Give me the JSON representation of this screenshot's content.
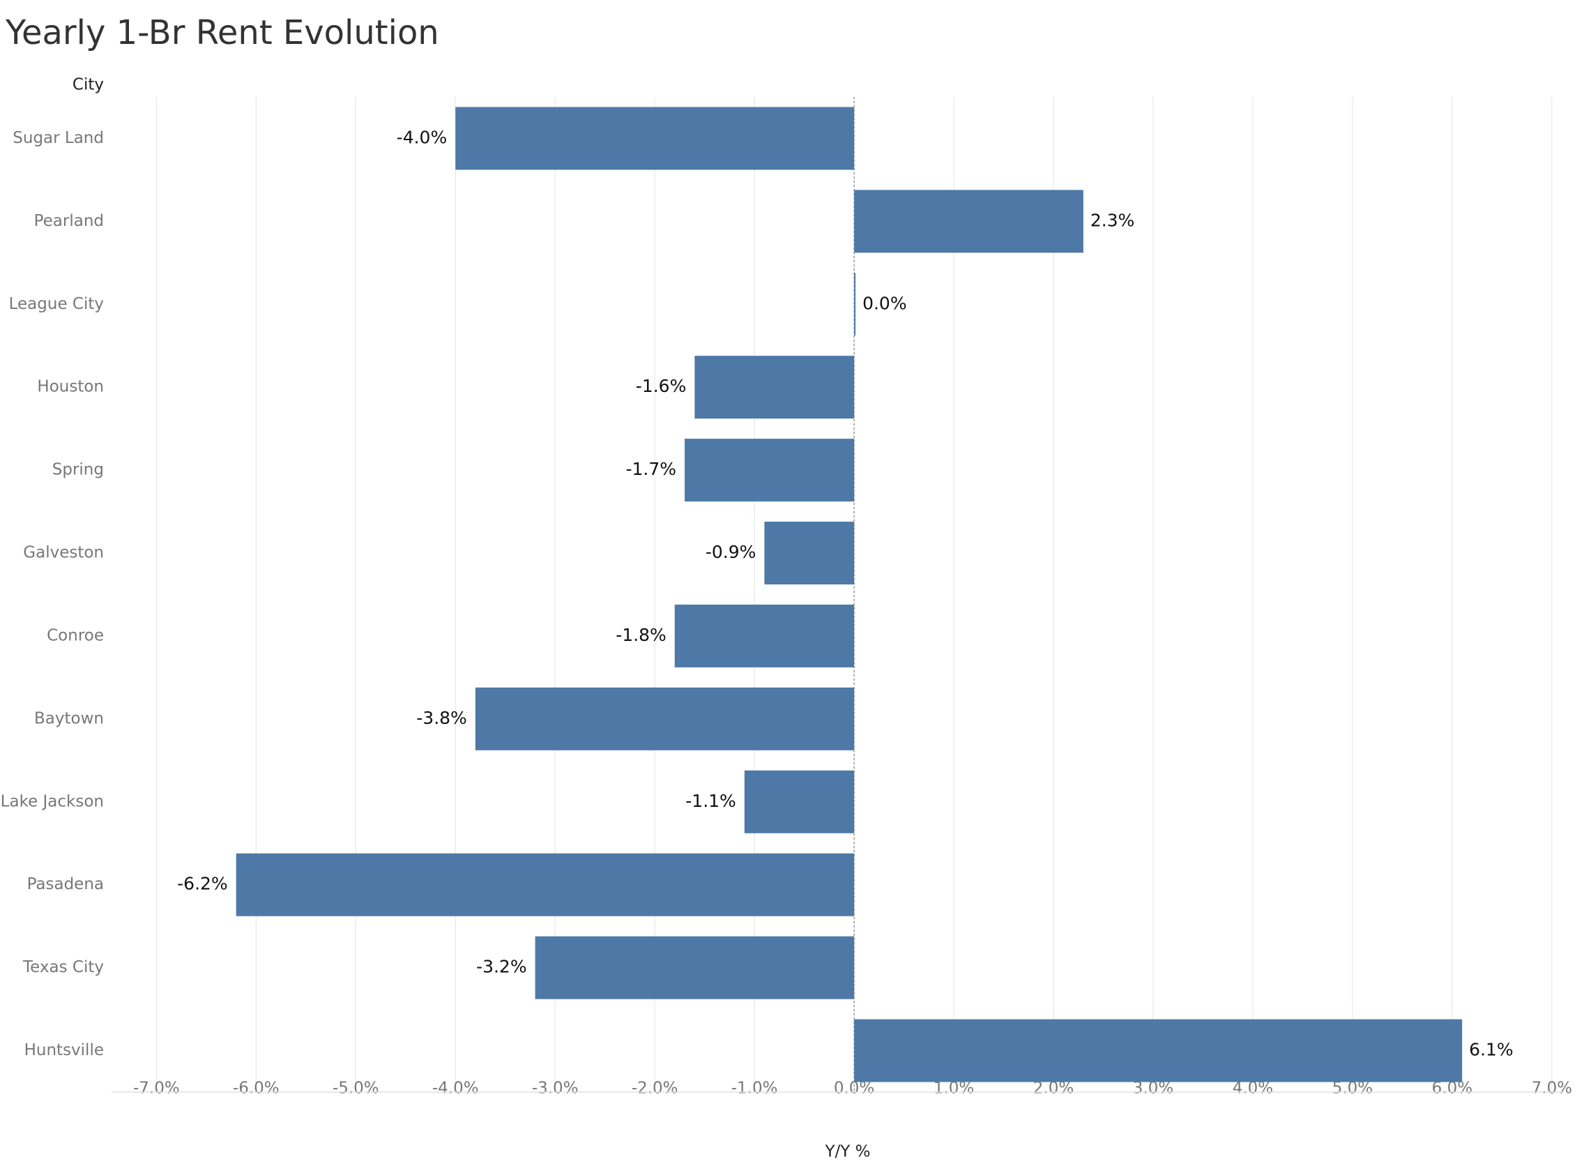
{
  "chart_data": {
    "type": "bar",
    "orientation": "horizontal",
    "title": "Yearly 1-Br Rent Evolution",
    "category_axis_label": "City",
    "x_axis_label": "Y/Y %",
    "categories": [
      "Sugar Land",
      "Pearland",
      "League City",
      "Houston",
      "Spring",
      "Galveston",
      "Conroe",
      "Baytown",
      "Lake Jackson",
      "Pasadena",
      "Texas City",
      "Huntsville"
    ],
    "values": [
      -4.0,
      2.3,
      0.0,
      -1.6,
      -1.7,
      -0.9,
      -1.8,
      -3.8,
      -1.1,
      -6.2,
      -3.2,
      6.1
    ],
    "value_labels": [
      "-4.0%",
      "2.3%",
      "0.0%",
      "-1.6%",
      "-1.7%",
      "-0.9%",
      "-1.8%",
      "-3.8%",
      "-1.1%",
      "-6.2%",
      "-3.2%",
      "6.1%"
    ],
    "color": "#4e79a7",
    "xlim": [
      -7.45,
      7.12
    ],
    "xticks": [
      {
        "value": -7,
        "label": "-7.0%"
      },
      {
        "value": -6,
        "label": "-6.0%"
      },
      {
        "value": -5,
        "label": "-5.0%"
      },
      {
        "value": -4,
        "label": "-4.0%"
      },
      {
        "value": -3,
        "label": "-3.0%"
      },
      {
        "value": -2,
        "label": "-2.0%"
      },
      {
        "value": -1,
        "label": "-1.0%"
      },
      {
        "value": 0,
        "label": "0.0%"
      },
      {
        "value": 1,
        "label": "1.0%"
      },
      {
        "value": 2,
        "label": "2.0%"
      },
      {
        "value": 3,
        "label": "3.0%"
      },
      {
        "value": 4,
        "label": "4.0%"
      },
      {
        "value": 5,
        "label": "5.0%"
      },
      {
        "value": 6,
        "label": "6.0%"
      },
      {
        "value": 7,
        "label": "7.0%"
      }
    ],
    "grid": true
  }
}
